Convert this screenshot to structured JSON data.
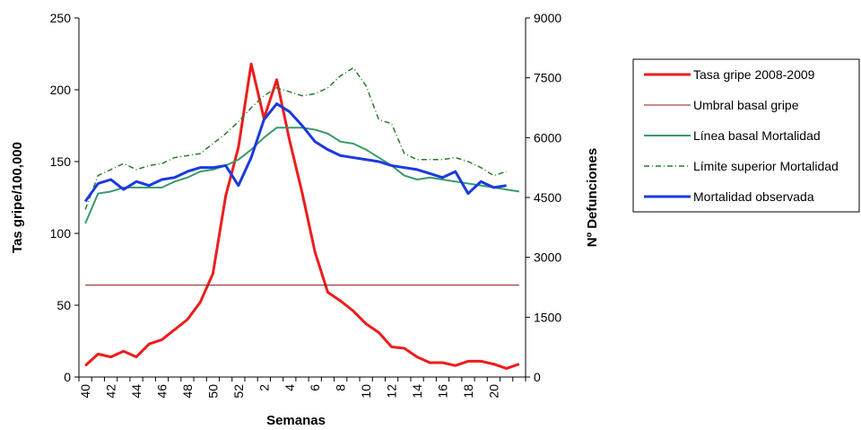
{
  "chart_data": {
    "type": "line",
    "x_label": "Semanas",
    "y_label": "Tas gripe/100,000",
    "y2_label": "Nº Defunciones",
    "categories": [
      "40",
      null,
      "42",
      null,
      "44",
      null,
      "46",
      null,
      "48",
      null,
      "50",
      null,
      "52",
      null,
      "2",
      null,
      "4",
      null,
      "6",
      null,
      "8",
      null,
      "10",
      null,
      "12",
      null,
      "14",
      null,
      "16",
      null,
      "18",
      null,
      "20",
      null,
      null
    ],
    "ylim": [
      0,
      250
    ],
    "yticks": [
      0,
      50,
      100,
      150,
      200,
      250
    ],
    "y2lim": [
      0,
      9000
    ],
    "y2ticks": [
      0,
      1500,
      3000,
      4500,
      6000,
      7500,
      9000
    ],
    "legend": "right",
    "series": [
      {
        "name": "Tasa gripe 2008-2009",
        "color": "#ee1c1c",
        "linewidth": 3,
        "linestyle": "solid",
        "values": [
          8,
          16,
          14,
          18,
          14,
          23,
          26,
          33,
          40,
          52,
          72,
          126,
          160,
          218,
          180,
          207,
          165,
          128,
          87,
          59,
          53,
          46,
          37,
          31,
          21,
          20,
          14,
          10,
          10,
          8,
          11,
          11,
          9,
          6,
          9
        ]
      },
      {
        "name": "Umbral basal gripe",
        "color": "#8b1a1a",
        "linewidth": 1,
        "linestyle": "solid",
        "values": [
          64,
          64,
          64,
          64,
          64,
          64,
          64,
          64,
          64,
          64,
          64,
          64,
          64,
          64,
          64,
          64,
          64,
          64,
          64,
          64,
          64,
          64,
          64,
          64,
          64,
          64,
          64,
          64,
          64,
          64,
          64,
          64,
          64,
          64,
          64
        ]
      },
      {
        "name": "Línea basal Mortalidad",
        "color": "#3a9a6a",
        "linewidth": 2,
        "linestyle": "solid",
        "axis": "y2",
        "values": [
          3850,
          4600,
          4650,
          4750,
          4750,
          4750,
          4750,
          4900,
          5000,
          5150,
          5200,
          5300,
          5450,
          5700,
          6000,
          6250,
          6250,
          6250,
          6200,
          6100,
          5900,
          5850,
          5700,
          5500,
          5300,
          5050,
          4950,
          5000,
          4950,
          4900,
          4850,
          4800,
          4750,
          4700,
          4650
        ]
      },
      {
        "name": "Límite superior Mortalidad",
        "color": "#2a7a2a",
        "linewidth": 1.5,
        "linestyle": "dashdot",
        "axis": "y2",
        "values": [
          4200,
          5050,
          5200,
          5350,
          5200,
          5300,
          5350,
          5500,
          5550,
          5600,
          5850,
          6100,
          6400,
          6750,
          7050,
          7250,
          7150,
          7050,
          7100,
          7250,
          7550,
          7750,
          7300,
          6450,
          6350,
          5600,
          5450,
          5450,
          5450,
          5500,
          5400,
          5250,
          5050,
          5150,
          null
        ]
      },
      {
        "name": "Mortalidad observada",
        "color": "#1a3ae0",
        "linewidth": 3,
        "linestyle": "solid",
        "axis": "y2",
        "values": [
          4400,
          4850,
          4950,
          4700,
          4900,
          4800,
          4950,
          5000,
          5150,
          5250,
          5250,
          5300,
          4800,
          5500,
          6450,
          6850,
          6650,
          6300,
          5900,
          5700,
          5550,
          5500,
          5450,
          5400,
          5300,
          5250,
          5200,
          5100,
          5000,
          5150,
          4600,
          4900,
          4750,
          4800,
          null
        ]
      }
    ]
  }
}
